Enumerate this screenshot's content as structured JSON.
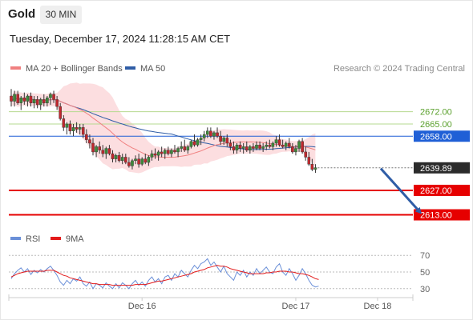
{
  "header": {
    "title": "Gold",
    "timeframe": "30 MIN"
  },
  "datetime": "Tuesday, December 17, 2024 11:28:15 AM CET",
  "legend": {
    "ma20_bb": {
      "label": "MA 20 + Bollinger Bands",
      "color": "#f08080"
    },
    "ma50": {
      "label": "MA 50",
      "color": "#2f5da6"
    }
  },
  "credit": "Research © 2024 Trading Central",
  "rsi_legend": {
    "rsi": {
      "label": "RSI",
      "color": "#6a8fd8"
    },
    "ma9": {
      "label": "9MA",
      "color": "#e31b1b"
    }
  },
  "chart_data": [
    {
      "type": "candlestick",
      "ylim": [
        2605,
        2692
      ],
      "x_ticks": [
        {
          "label": "Dec 16",
          "index": 40
        },
        {
          "label": "Dec 17",
          "index": 87
        },
        {
          "label": "Dec 18",
          "index": 112
        }
      ],
      "levels": [
        {
          "value": 2672.0,
          "label": "2672.00",
          "style": "resistance",
          "color": "#5aa02c"
        },
        {
          "value": 2665.0,
          "label": "2665.00",
          "style": "resistance",
          "color": "#5aa02c"
        },
        {
          "value": 2658.0,
          "label": "2658.00",
          "style": "pivot",
          "color": "#1f5fd6"
        },
        {
          "value": 2639.89,
          "label": "2639.89",
          "style": "last",
          "color": "#2b2b2b"
        },
        {
          "value": 2627.0,
          "label": "2627.00",
          "style": "support",
          "color": "#e60000"
        },
        {
          "value": 2613.0,
          "label": "2613.00",
          "style": "support",
          "color": "#e60000"
        }
      ],
      "arrow": {
        "from_index": 112,
        "from_value": 2639.5,
        "to_index": 125,
        "to_value": 2614.5,
        "color": "#2f5da6"
      },
      "ohlc": [
        [
          2681,
          2685,
          2675,
          2678
        ],
        [
          2678,
          2684,
          2675,
          2682
        ],
        [
          2682,
          2684,
          2676,
          2677
        ],
        [
          2677,
          2681,
          2673,
          2680
        ],
        [
          2680,
          2683,
          2676,
          2678
        ],
        [
          2678,
          2682,
          2675,
          2681
        ],
        [
          2681,
          2683,
          2675,
          2677
        ],
        [
          2677,
          2681,
          2674,
          2679
        ],
        [
          2679,
          2681,
          2674,
          2676
        ],
        [
          2676,
          2680,
          2673,
          2679
        ],
        [
          2679,
          2682,
          2675,
          2677
        ],
        [
          2677,
          2681,
          2675,
          2680
        ],
        [
          2680,
          2683,
          2676,
          2682
        ],
        [
          2682,
          2684,
          2677,
          2679
        ],
        [
          2679,
          2681,
          2673,
          2675
        ],
        [
          2675,
          2677,
          2667,
          2668
        ],
        [
          2668,
          2670,
          2661,
          2663
        ],
        [
          2663,
          2666,
          2659,
          2665
        ],
        [
          2665,
          2667,
          2659,
          2661
        ],
        [
          2661,
          2665,
          2658,
          2663
        ],
        [
          2663,
          2666,
          2660,
          2662
        ],
        [
          2662,
          2665,
          2659,
          2663
        ],
        [
          2663,
          2665,
          2657,
          2659
        ],
        [
          2659,
          2662,
          2654,
          2656
        ],
        [
          2656,
          2659,
          2651,
          2654
        ],
        [
          2654,
          2657,
          2647,
          2649
        ],
        [
          2649,
          2653,
          2646,
          2652
        ],
        [
          2652,
          2655,
          2648,
          2650
        ],
        [
          2650,
          2653,
          2646,
          2648
        ],
        [
          2648,
          2652,
          2645,
          2651
        ],
        [
          2651,
          2653,
          2647,
          2648
        ],
        [
          2648,
          2650,
          2643,
          2645
        ],
        [
          2645,
          2648,
          2643,
          2647
        ],
        [
          2647,
          2649,
          2643,
          2644
        ],
        [
          2644,
          2648,
          2642,
          2646
        ],
        [
          2646,
          2648,
          2642,
          2643
        ],
        [
          2643,
          2646,
          2640,
          2641
        ],
        [
          2641,
          2645,
          2639,
          2644
        ],
        [
          2644,
          2647,
          2642,
          2645
        ],
        [
          2645,
          2648,
          2640,
          2642
        ],
        [
          2642,
          2646,
          2641,
          2645
        ],
        [
          2645,
          2648,
          2642,
          2643
        ],
        [
          2643,
          2647,
          2641,
          2646
        ],
        [
          2646,
          2650,
          2644,
          2648
        ],
        [
          2648,
          2651,
          2645,
          2647
        ],
        [
          2647,
          2650,
          2644,
          2649
        ],
        [
          2649,
          2652,
          2646,
          2648
        ],
        [
          2648,
          2651,
          2645,
          2650
        ],
        [
          2650,
          2652,
          2647,
          2648
        ],
        [
          2648,
          2651,
          2646,
          2650
        ],
        [
          2650,
          2653,
          2648,
          2649
        ],
        [
          2649,
          2652,
          2646,
          2651
        ],
        [
          2651,
          2655,
          2649,
          2652
        ],
        [
          2652,
          2656,
          2649,
          2650
        ],
        [
          2650,
          2653,
          2648,
          2652
        ],
        [
          2652,
          2656,
          2651,
          2655
        ],
        [
          2655,
          2659,
          2652,
          2653
        ],
        [
          2653,
          2657,
          2652,
          2656
        ],
        [
          2656,
          2659,
          2653,
          2657
        ],
        [
          2657,
          2661,
          2655,
          2659
        ],
        [
          2659,
          2663,
          2657,
          2661
        ],
        [
          2661,
          2663,
          2657,
          2658
        ],
        [
          2658,
          2661,
          2656,
          2660
        ],
        [
          2660,
          2663,
          2657,
          2658
        ],
        [
          2658,
          2661,
          2653,
          2655
        ],
        [
          2655,
          2658,
          2653,
          2657
        ],
        [
          2657,
          2659,
          2652,
          2654
        ],
        [
          2654,
          2656,
          2650,
          2652
        ],
        [
          2652,
          2655,
          2648,
          2650
        ],
        [
          2650,
          2654,
          2648,
          2653
        ],
        [
          2653,
          2655,
          2649,
          2651
        ],
        [
          2651,
          2654,
          2648,
          2652
        ],
        [
          2652,
          2655,
          2649,
          2650
        ],
        [
          2650,
          2653,
          2648,
          2652
        ],
        [
          2652,
          2654,
          2649,
          2651
        ],
        [
          2651,
          2655,
          2650,
          2653
        ],
        [
          2653,
          2655,
          2650,
          2651
        ],
        [
          2651,
          2654,
          2649,
          2652
        ],
        [
          2652,
          2655,
          2650,
          2653
        ],
        [
          2653,
          2656,
          2651,
          2652
        ],
        [
          2652,
          2655,
          2650,
          2654
        ],
        [
          2654,
          2658,
          2652,
          2656
        ],
        [
          2656,
          2659,
          2652,
          2653
        ],
        [
          2653,
          2656,
          2651,
          2652
        ],
        [
          2652,
          2655,
          2650,
          2654
        ],
        [
          2654,
          2657,
          2651,
          2652
        ],
        [
          2652,
          2654,
          2648,
          2649
        ],
        [
          2649,
          2653,
          2647,
          2651
        ],
        [
          2651,
          2656,
          2649,
          2655
        ],
        [
          2655,
          2657,
          2648,
          2649
        ],
        [
          2649,
          2652,
          2644,
          2646
        ],
        [
          2646,
          2649,
          2641,
          2642
        ],
        [
          2642,
          2645,
          2638,
          2639
        ],
        [
          2639,
          2642,
          2637,
          2640
        ]
      ]
    },
    {
      "type": "line",
      "name_series": [
        "RSI",
        "9MA"
      ],
      "ylim": [
        25,
        75
      ],
      "y_ticks": [
        30,
        50,
        70
      ],
      "series": [
        {
          "name": "RSI",
          "values": [
            42,
            48,
            52,
            55,
            50,
            54,
            47,
            52,
            49,
            53,
            50,
            54,
            57,
            52,
            46,
            38,
            34,
            40,
            36,
            42,
            39,
            44,
            36,
            33,
            38,
            30,
            36,
            34,
            31,
            37,
            33,
            30,
            36,
            31,
            37,
            34,
            30,
            36,
            40,
            34,
            38,
            33,
            40,
            44,
            38,
            42,
            36,
            44,
            46,
            40,
            48,
            44,
            52,
            48,
            44,
            52,
            58,
            54,
            60,
            62,
            66,
            58,
            62,
            56,
            50,
            57,
            48,
            44,
            40,
            50,
            46,
            52,
            44,
            50,
            46,
            54,
            48,
            52,
            56,
            50,
            48,
            56,
            60,
            50,
            46,
            54,
            48,
            40,
            46,
            54,
            48,
            40,
            34,
            32,
            33
          ]
        },
        {
          "name": "9MA",
          "values": [
            44,
            46,
            48,
            49,
            50,
            51,
            51,
            51,
            51,
            51,
            51,
            52,
            52,
            52,
            50,
            48,
            46,
            45,
            43,
            42,
            41,
            40,
            39,
            38,
            37,
            36,
            36,
            35,
            35,
            35,
            35,
            34,
            34,
            34,
            34,
            34,
            34,
            34,
            35,
            35,
            35,
            35,
            36,
            37,
            38,
            39,
            39,
            40,
            41,
            42,
            43,
            44,
            45,
            46,
            47,
            48,
            50,
            51,
            52,
            53,
            55,
            56,
            57,
            58,
            57,
            57,
            56,
            54,
            53,
            52,
            51,
            50,
            49,
            48,
            48,
            48,
            48,
            48,
            49,
            49,
            50,
            50,
            51,
            51,
            51,
            50,
            50,
            49,
            48,
            48,
            47,
            46,
            44,
            42,
            41
          ]
        }
      ]
    }
  ]
}
